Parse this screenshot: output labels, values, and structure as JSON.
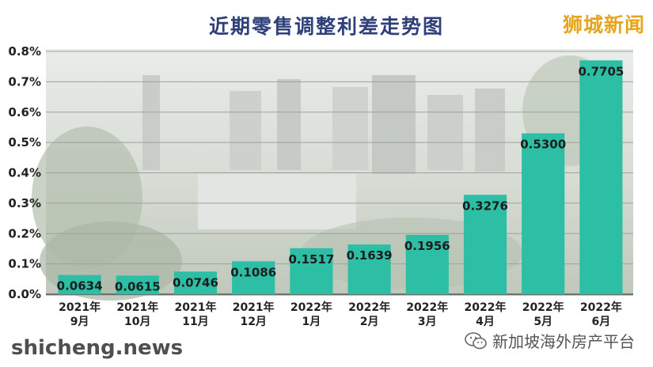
{
  "header": {
    "title": "近期零售调整利差走势图",
    "brand": "狮城新闻"
  },
  "footer": {
    "watermark_left": "shicheng.news",
    "watermark_right": "新加坡海外房产平台",
    "watermark_icon": "wechat-icon"
  },
  "colors": {
    "bar": "#2dbfa6",
    "title": "#2e3f7a",
    "brand": "#e7a51e"
  },
  "chart_data": {
    "type": "bar",
    "title": "近期零售调整利差走势图",
    "categories": [
      [
        "2021年",
        "9月"
      ],
      [
        "2021年",
        "10月"
      ],
      [
        "2021年",
        "11月"
      ],
      [
        "2021年",
        "12月"
      ],
      [
        "2022年",
        "1月"
      ],
      [
        "2022年",
        "2月"
      ],
      [
        "2022年",
        "3月"
      ],
      [
        "2022年",
        "4月"
      ],
      [
        "2022年",
        "5月"
      ],
      [
        "2022年",
        "6月"
      ]
    ],
    "values": [
      0.0634,
      0.0615,
      0.0746,
      0.1086,
      0.1517,
      0.1639,
      0.1956,
      0.3276,
      0.53,
      0.7705
    ],
    "value_labels": [
      "0.0634",
      "0.0615",
      "0.0746",
      "0.1086",
      "0.1517",
      "0.1639",
      "0.1956",
      "0.3276",
      "0.5300",
      "0.7705"
    ],
    "yticks": [
      "0.0%",
      "0.1%",
      "0.2%",
      "0.3%",
      "0.4%",
      "0.5%",
      "0.6%",
      "0.7%",
      "0.8%"
    ],
    "ylim": [
      0,
      0.8
    ],
    "grid": true,
    "xlabel": "",
    "ylabel": ""
  }
}
